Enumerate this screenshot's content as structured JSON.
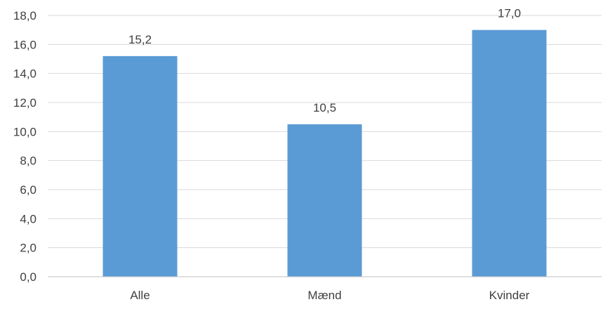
{
  "chart_data": {
    "type": "bar",
    "categories": [
      "Alle",
      "Mænd",
      "Kvinder"
    ],
    "values": [
      15.2,
      10.5,
      17.0
    ],
    "value_labels": [
      "15,2",
      "10,5",
      "17,0"
    ],
    "yticks": [
      "0,0",
      "2,0",
      "4,0",
      "6,0",
      "8,0",
      "10,0",
      "12,0",
      "14,0",
      "16,0",
      "18,0"
    ],
    "ylim": [
      0,
      18
    ],
    "ytick_step": 2,
    "grid": true,
    "legend": "none",
    "title": "",
    "xlabel": "",
    "ylabel": "",
    "colors": {
      "bar": "#5b9bd5",
      "grid": "#d9d9d9",
      "axis": "#bfbfbf",
      "text": "#404040"
    }
  }
}
